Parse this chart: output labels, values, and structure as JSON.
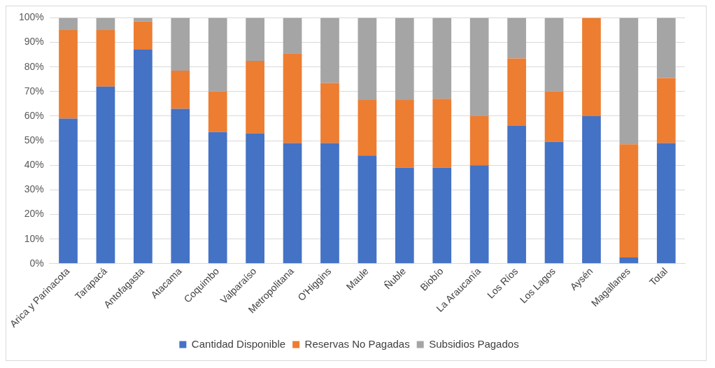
{
  "chart_data": {
    "type": "bar",
    "stacked": true,
    "categories": [
      "Arica y Parinacota",
      "Tarapacá",
      "Antofagasta",
      "Atacama",
      "Coquimbo",
      "Valparaíso",
      "Metropolitana",
      "O'Higgins",
      "Maule",
      "Ñuble",
      "Biobío",
      "La Araucanía",
      "Los Ríos",
      "Los Lagos",
      "Aysén",
      "Magallanes",
      "Total"
    ],
    "series": [
      {
        "name": "Cantidad Disponible",
        "color": "#4472c4",
        "values": [
          59,
          72,
          87,
          63,
          53.5,
          53,
          49,
          49,
          44,
          39,
          39,
          40,
          56,
          49.5,
          60,
          2.5,
          49
        ]
      },
      {
        "name": "Reservas No Pagadas",
        "color": "#ed7d31",
        "values": [
          36,
          23,
          11.5,
          15.5,
          16.5,
          29.5,
          36.5,
          24.5,
          22.5,
          27.5,
          28,
          20,
          27.5,
          20.5,
          40,
          46,
          26.5
        ]
      },
      {
        "name": "Subsidios Pagados",
        "color": "#a5a5a5",
        "values": [
          5,
          5,
          1.5,
          21.5,
          30,
          17.5,
          14.5,
          26.5,
          33.5,
          33.5,
          33,
          40,
          16.5,
          30,
          0,
          51.5,
          24.5
        ]
      }
    ],
    "ylim": [
      0,
      100
    ],
    "yticks": [
      {
        "value": 0,
        "label": "0%"
      },
      {
        "value": 10,
        "label": "10%"
      },
      {
        "value": 20,
        "label": "20%"
      },
      {
        "value": 30,
        "label": "30%"
      },
      {
        "value": 40,
        "label": "40%"
      },
      {
        "value": 50,
        "label": "50%"
      },
      {
        "value": 60,
        "label": "60%"
      },
      {
        "value": 70,
        "label": "70%"
      },
      {
        "value": 80,
        "label": "80%"
      },
      {
        "value": 90,
        "label": "90%"
      },
      {
        "value": 100,
        "label": "100%"
      }
    ],
    "grid": "y",
    "legend": "bottom"
  }
}
